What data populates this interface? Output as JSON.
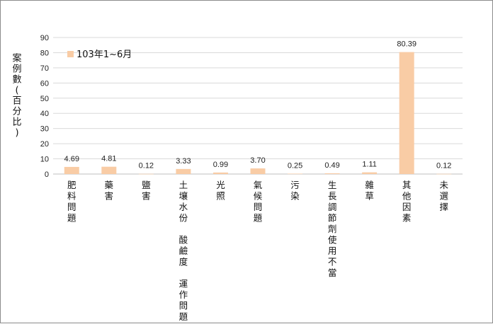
{
  "chart_data": {
    "type": "bar",
    "title": "",
    "xlabel": "",
    "ylabel": "案例數(百分比)",
    "ylim": [
      0,
      90
    ],
    "yticks": [
      0,
      10,
      20,
      30,
      40,
      50,
      60,
      70,
      80,
      90
    ],
    "grid": true,
    "legend_position": "top-left",
    "categories": [
      "肥料問題",
      "藥害",
      "鹽害",
      "土壤水份 酸鹼度 運作問題",
      "光照",
      "氣候問題",
      "污染",
      "生長調節劑使用不當",
      "雜草",
      "其他因素",
      "未選擇"
    ],
    "series": [
      {
        "name": "103年1~6月",
        "color": "#f9cca5",
        "values": [
          4.69,
          4.81,
          0.12,
          3.33,
          0.99,
          3.7,
          0.25,
          0.49,
          1.11,
          80.39,
          0.12
        ],
        "labels": [
          "4.69",
          "4.81",
          "0.12",
          "3.33",
          "0.99",
          "3.70",
          "0.25",
          "0.49",
          "1.11",
          "80.39",
          "0.12"
        ]
      }
    ]
  }
}
